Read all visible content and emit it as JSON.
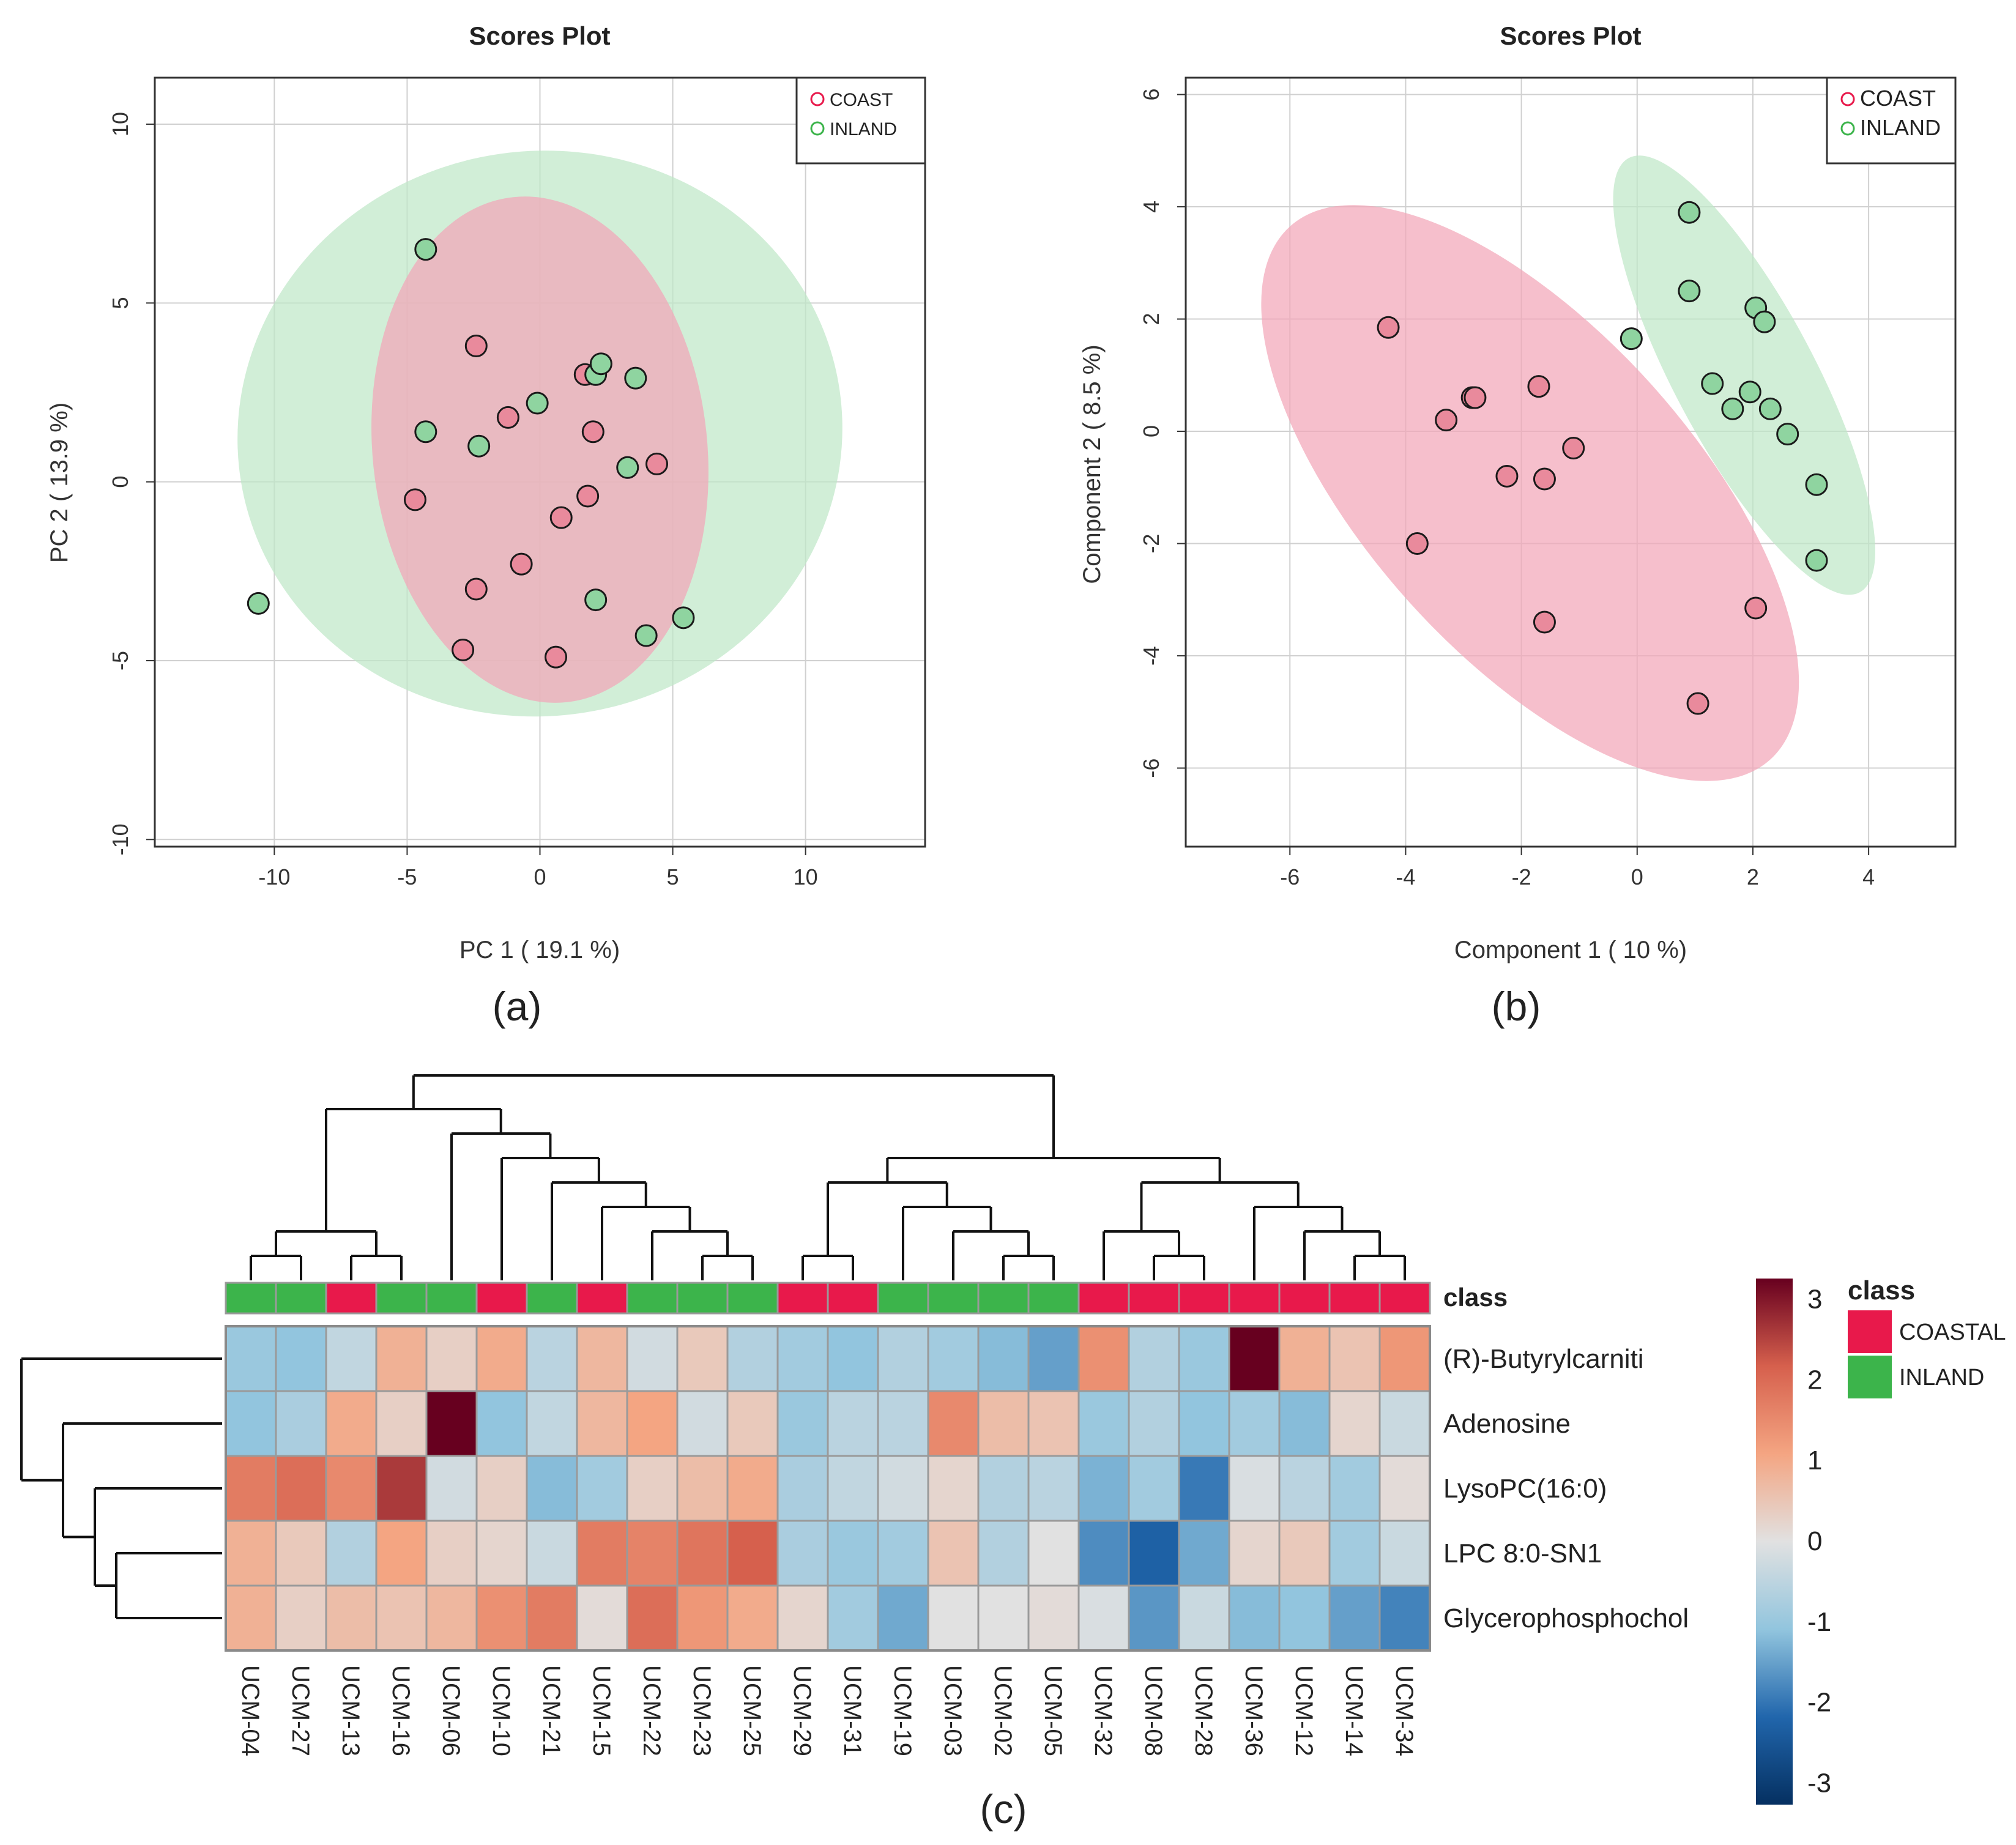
{
  "panels": {
    "a": {
      "caption": "(a)"
    },
    "b": {
      "caption": "(b)"
    },
    "c": {
      "caption": "(c)"
    }
  },
  "colors": {
    "coast_point": "#e98a9c",
    "inland_point": "#8fd4a0",
    "coast_ellipse": "#f3a6b8",
    "inland_ellipse": "#bfe8c8",
    "overlap_ellipse": "#c7b2a3",
    "class_coastal": "#e8194b",
    "class_inland": "#3cb44b"
  },
  "chart_data": [
    {
      "id": "a",
      "type": "scatter",
      "title": "Scores Plot",
      "xlabel": "PC 1 ( 19.1 %)",
      "ylabel": "PC 2 ( 13.9 %)",
      "xlim": [
        -14.5,
        14.5
      ],
      "ylim": [
        -10.2,
        11.3
      ],
      "xticks": [
        -10,
        -5,
        0,
        5,
        10
      ],
      "yticks": [
        -10,
        -5,
        0,
        5,
        10
      ],
      "xtick_labels": [
        "-10",
        "-5",
        "0",
        "5",
        "10"
      ],
      "ytick_labels": [
        "-10",
        "-5",
        "0",
        "5",
        "10"
      ],
      "grid": true,
      "legend": [
        "COAST",
        "INLAND"
      ],
      "legend_position": "top-right",
      "ellipses": [
        {
          "group": "INLAND",
          "cx": 0.0,
          "cy": 1.35,
          "rx": 11.4,
          "ry": 7.9,
          "angle": -8
        },
        {
          "group": "COAST",
          "cx": 0.0,
          "cy": 0.9,
          "rx": 6.3,
          "ry": 7.1,
          "angle": -6
        }
      ],
      "series": [
        {
          "name": "COAST",
          "points": [
            [
              -2.4,
              3.8
            ],
            [
              -1.2,
              1.8
            ],
            [
              1.7,
              3.0
            ],
            [
              2.0,
              1.4
            ],
            [
              4.4,
              0.5
            ],
            [
              -4.7,
              -0.5
            ],
            [
              0.8,
              -1.0
            ],
            [
              1.8,
              -0.4
            ],
            [
              -0.7,
              -2.3
            ],
            [
              -2.4,
              -3.0
            ],
            [
              -2.9,
              -4.7
            ],
            [
              0.6,
              -4.9
            ]
          ]
        },
        {
          "name": "INLAND",
          "points": [
            [
              -4.3,
              6.5
            ],
            [
              -0.1,
              2.2
            ],
            [
              2.1,
              3.0
            ],
            [
              2.3,
              3.3
            ],
            [
              3.6,
              2.9
            ],
            [
              -4.3,
              1.4
            ],
            [
              -2.3,
              1.0
            ],
            [
              3.3,
              0.4
            ],
            [
              2.1,
              -3.3
            ],
            [
              4.0,
              -4.3
            ],
            [
              5.4,
              -3.8
            ],
            [
              -10.6,
              -3.4
            ]
          ]
        }
      ]
    },
    {
      "id": "b",
      "type": "scatter",
      "title": "Scores Plot",
      "xlabel": "Component 1 ( 10 %)",
      "ylabel": "Component 2 ( 8.5 %)",
      "xlim": [
        -7.8,
        5.5
      ],
      "ylim": [
        -7.4,
        6.3
      ],
      "xticks": [
        -6,
        -4,
        -2,
        0,
        2,
        4
      ],
      "yticks": [
        -6,
        -4,
        -2,
        0,
        2,
        4,
        6
      ],
      "xtick_labels": [
        "-6",
        "-4",
        "-2",
        "0",
        "2",
        "4"
      ],
      "ytick_labels": [
        "-6",
        "-4",
        "-2",
        "0",
        "2",
        "4",
        "6"
      ],
      "grid": true,
      "legend": [
        "COAST",
        "INLAND"
      ],
      "legend_position": "top-right",
      "ellipses": [
        {
          "group": "COAST",
          "cx": -1.85,
          "cy": -1.1,
          "rx": 6.2,
          "ry": 2.9,
          "angle": 48
        },
        {
          "group": "INLAND",
          "cx": 1.85,
          "cy": 1.0,
          "rx": 4.25,
          "ry": 1.25,
          "angle": 62
        }
      ],
      "series": [
        {
          "name": "COAST",
          "points": [
            [
              -4.3,
              1.85
            ],
            [
              -2.85,
              0.6
            ],
            [
              -2.8,
              0.6
            ],
            [
              -3.3,
              0.2
            ],
            [
              -1.7,
              0.8
            ],
            [
              -1.1,
              -0.3
            ],
            [
              -2.25,
              -0.8
            ],
            [
              -1.6,
              -0.85
            ],
            [
              -3.8,
              -2.0
            ],
            [
              -1.6,
              -3.4
            ],
            [
              2.05,
              -3.15
            ],
            [
              1.05,
              -4.85
            ]
          ]
        },
        {
          "name": "INLAND",
          "points": [
            [
              0.9,
              3.9
            ],
            [
              0.9,
              2.5
            ],
            [
              2.05,
              2.2
            ],
            [
              2.2,
              1.95
            ],
            [
              -0.1,
              1.65
            ],
            [
              1.3,
              0.85
            ],
            [
              1.95,
              0.7
            ],
            [
              1.65,
              0.4
            ],
            [
              2.3,
              0.4
            ],
            [
              2.6,
              -0.05
            ],
            [
              3.1,
              -0.95
            ],
            [
              3.1,
              -2.3
            ]
          ]
        }
      ]
    },
    {
      "id": "c",
      "type": "heatmap",
      "columns": [
        "UCM-04",
        "UCM-27",
        "UCM-13",
        "UCM-16",
        "UCM-06",
        "UCM-10",
        "UCM-21",
        "UCM-15",
        "UCM-22",
        "UCM-23",
        "UCM-25",
        "UCM-29",
        "UCM-31",
        "UCM-19",
        "UCM-03",
        "UCM-02",
        "UCM-05",
        "UCM-32",
        "UCM-08",
        "UCM-28",
        "UCM-36",
        "UCM-12",
        "UCM-14",
        "UCM-34"
      ],
      "column_class": [
        "INLAND",
        "INLAND",
        "COASTAL",
        "INLAND",
        "INLAND",
        "COASTAL",
        "INLAND",
        "COASTAL",
        "INLAND",
        "INLAND",
        "INLAND",
        "COASTAL",
        "COASTAL",
        "INLAND",
        "INLAND",
        "INLAND",
        "INLAND",
        "COASTAL",
        "COASTAL",
        "COASTAL",
        "COASTAL",
        "COASTAL",
        "COASTAL",
        "COASTAL"
      ],
      "class_row_label": "class",
      "rows": [
        "(R)-Butyrylcarniti",
        "Adenosine",
        "LysoPC(16:0)",
        "LPC 8:0-SN1",
        "Glycerophosphochol"
      ],
      "values": [
        [
          -0.9,
          -1.0,
          -0.4,
          0.8,
          0.3,
          0.9,
          -0.5,
          0.7,
          -0.2,
          0.4,
          -0.6,
          -0.8,
          -1.0,
          -0.6,
          -0.8,
          -1.1,
          -1.4,
          1.3,
          -0.6,
          -0.9,
          3.3,
          0.8,
          0.5,
          1.2
        ],
        [
          -1.0,
          -0.7,
          0.9,
          0.3,
          3.5,
          -1.0,
          -0.4,
          0.7,
          1.0,
          -0.2,
          0.4,
          -0.9,
          -0.5,
          -0.5,
          1.4,
          0.6,
          0.5,
          -0.9,
          -0.6,
          -1.0,
          -0.8,
          -1.1,
          0.2,
          -0.3
        ],
        [
          1.6,
          1.8,
          1.4,
          2.4,
          -0.2,
          0.3,
          -1.1,
          -0.8,
          0.3,
          0.6,
          0.9,
          -0.7,
          -0.4,
          -0.2,
          0.2,
          -0.6,
          -0.5,
          -1.2,
          -0.8,
          -1.8,
          -0.1,
          -0.5,
          -0.8,
          0.1
        ],
        [
          0.8,
          0.4,
          -0.6,
          1.0,
          0.3,
          0.2,
          -0.3,
          1.6,
          1.5,
          1.7,
          2.0,
          -0.7,
          -0.9,
          -0.8,
          0.5,
          -0.6,
          0.0,
          -1.6,
          -2.1,
          -1.3,
          0.2,
          0.4,
          -0.8,
          -0.3
        ],
        [
          0.8,
          0.3,
          0.6,
          0.5,
          0.7,
          1.3,
          1.6,
          0.1,
          1.8,
          1.2,
          0.9,
          0.2,
          -0.8,
          -1.3,
          0.0,
          0.0,
          0.1,
          -0.1,
          -1.5,
          -0.3,
          -1.1,
          -1.0,
          -1.4,
          -1.7
        ]
      ],
      "color_scale": {
        "min": -3,
        "max": 3,
        "ticks": [
          "3",
          "2",
          "1",
          "0",
          "-1",
          "-2",
          "-3"
        ],
        "tick_values": [
          3,
          2,
          1,
          0,
          -1,
          -2,
          -3
        ]
      },
      "class_legend": {
        "title": "class",
        "items": [
          "COASTAL",
          "INLAND"
        ]
      }
    }
  ]
}
